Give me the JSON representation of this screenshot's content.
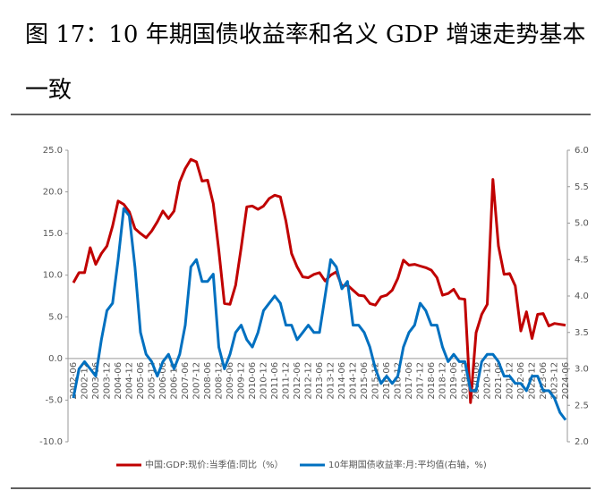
{
  "chart_data": {
    "type": "line",
    "title": "图 17：10 年期国债收益率和名义 GDP 增速走势基本一致",
    "categories": [
      "2002-06",
      null,
      "2002-12",
      null,
      "2003-06",
      null,
      "2003-12",
      null,
      "2004-06",
      null,
      "2004-12",
      null,
      "2005-06",
      null,
      "2005-12",
      null,
      "2006-06",
      null,
      "2006-12",
      null,
      "2007-06",
      null,
      "2007-12",
      null,
      "2008-06",
      null,
      "2008-12",
      null,
      "2009-06",
      null,
      "2009-12",
      null,
      "2010-06",
      null,
      "2010-12",
      null,
      "2011-06",
      null,
      "2011-12",
      null,
      "2012-06",
      null,
      "2012-12",
      null,
      "2013-06",
      null,
      "2013-12",
      null,
      "2014-06",
      null,
      "2014-12",
      null,
      "2015-06",
      null,
      "2015-12",
      null,
      "2016-06",
      null,
      "2016-12",
      null,
      "2017-06",
      null,
      "2017-12",
      null,
      "2018-06",
      null,
      "2018-12",
      null,
      "2019-06",
      null,
      "2019-12",
      null,
      "2020-06",
      null,
      "2020-12",
      null,
      "2021-06",
      null,
      "2021-12",
      null,
      "2022-06",
      null,
      "2022-12",
      null,
      "2023-06",
      null,
      "2023-12",
      null,
      "2024-06"
    ],
    "series": [
      {
        "name": "中国:GDP:现价:当季值:同比（%）",
        "color": "#c00000",
        "values": [
          9.1,
          10.3,
          10.3,
          13.3,
          11.3,
          12.6,
          13.5,
          15.9,
          18.9,
          18.5,
          17.6,
          15.6,
          15.0,
          14.5,
          15.3,
          16.4,
          17.7,
          16.8,
          17.7,
          21.2,
          22.8,
          23.9,
          23.6,
          21.3,
          21.4,
          18.6,
          13.0,
          6.6,
          6.5,
          8.8,
          13.3,
          18.2,
          18.3,
          17.9,
          18.3,
          19.2,
          19.6,
          19.4,
          16.5,
          12.6,
          11.0,
          9.8,
          9.7,
          10.1,
          10.3,
          9.3,
          10.0,
          10.4,
          8.7,
          8.8,
          8.2,
          7.6,
          7.5,
          6.6,
          6.4,
          7.4,
          7.6,
          8.2,
          9.6,
          11.8,
          11.2,
          11.3,
          11.1,
          10.9,
          10.6,
          9.7,
          7.6,
          7.8,
          8.3,
          7.2,
          7.1,
          -5.3,
          3.1,
          5.3,
          6.5,
          21.5,
          13.5,
          10.1,
          10.2,
          8.7,
          3.3,
          5.6,
          2.4,
          5.3,
          5.4,
          3.9,
          4.2,
          4.1,
          4.0
        ]
      },
      {
        "name": "10年期国债收益率:月:平均值(右轴，%)",
        "color": "#0070c0",
        "axis": "y2",
        "values": [
          2.6,
          3.0,
          3.1,
          3.0,
          2.9,
          3.4,
          3.8,
          3.9,
          4.5,
          5.2,
          5.1,
          4.4,
          3.5,
          3.2,
          3.1,
          2.9,
          3.1,
          3.2,
          3.0,
          3.2,
          3.6,
          4.4,
          4.5,
          4.2,
          4.2,
          4.3,
          3.3,
          3.0,
          3.2,
          3.5,
          3.6,
          3.4,
          3.3,
          3.5,
          3.8,
          3.9,
          4.0,
          3.9,
          3.6,
          3.6,
          3.4,
          3.5,
          3.6,
          3.5,
          3.5,
          4.0,
          4.5,
          4.4,
          4.1,
          4.2,
          3.6,
          3.6,
          3.5,
          3.3,
          3.0,
          2.8,
          2.9,
          2.8,
          2.9,
          3.3,
          3.5,
          3.6,
          3.9,
          3.8,
          3.6,
          3.6,
          3.3,
          3.1,
          3.2,
          3.1,
          3.1,
          2.7,
          2.7,
          3.1,
          3.2,
          3.2,
          3.1,
          2.9,
          2.9,
          2.8,
          2.8,
          2.7,
          2.9,
          2.9,
          2.7,
          2.7,
          2.6,
          2.4,
          2.3
        ]
      }
    ],
    "ylim": [
      -10,
      25
    ],
    "yticks": [
      {
        "value": -10,
        "label": "-10.0"
      },
      {
        "value": -5,
        "label": "-5.0"
      },
      {
        "value": 0,
        "label": "0.0"
      },
      {
        "value": 5,
        "label": "5.0"
      },
      {
        "value": 10,
        "label": "10.0"
      },
      {
        "value": 15,
        "label": "15.0"
      },
      {
        "value": 20,
        "label": "20.0"
      },
      {
        "value": 25,
        "label": "25.0"
      }
    ],
    "y2lim": [
      2,
      6
    ],
    "y2ticks": [
      {
        "value": 2,
        "label": "2.0"
      },
      {
        "value": 2.5,
        "label": "2.5"
      },
      {
        "value": 3,
        "label": "3.0"
      },
      {
        "value": 3.5,
        "label": "3.5"
      },
      {
        "value": 4,
        "label": "4.0"
      },
      {
        "value": 4.5,
        "label": "4.5"
      },
      {
        "value": 5,
        "label": "5.0"
      },
      {
        "value": 5.5,
        "label": "5.5"
      },
      {
        "value": 6,
        "label": "6.0"
      }
    ],
    "legend": "bottom"
  }
}
